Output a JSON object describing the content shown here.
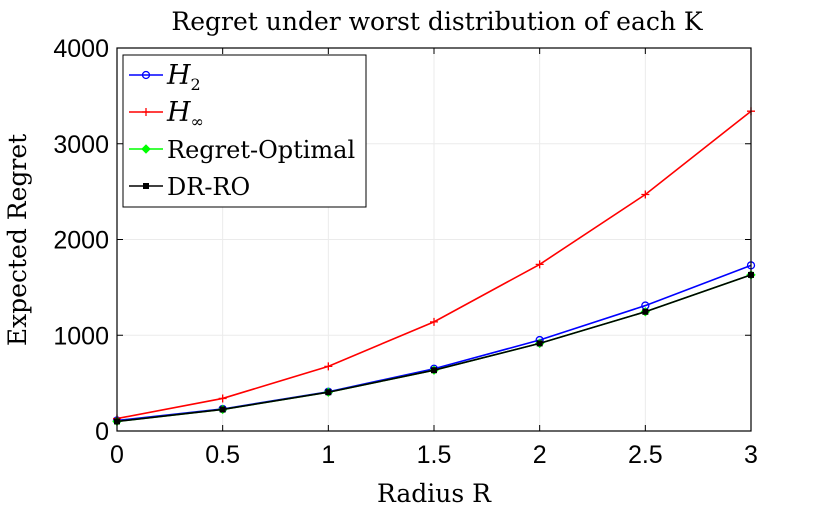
{
  "chart_data": {
    "type": "line",
    "title": "Regret under worst distribution of each K",
    "xlabel": "Radius R",
    "ylabel": "Expected Regret",
    "xlim": [
      0,
      3
    ],
    "ylim": [
      0,
      4000
    ],
    "xticks": [
      0,
      0.5,
      1,
      1.5,
      2,
      2.5,
      3
    ],
    "xtick_labels": [
      "0",
      "0.5",
      "1",
      "1.5",
      "2",
      "2.5",
      "3"
    ],
    "yticks": [
      0,
      1000,
      2000,
      3000,
      4000
    ],
    "ytick_labels": [
      "0",
      "1000",
      "2000",
      "3000",
      "4000"
    ],
    "grid": true,
    "legend_position": "top-left",
    "x": [
      0,
      0.5,
      1,
      1.5,
      2,
      2.5,
      3
    ],
    "series": [
      {
        "name": "H₂",
        "legend_main": "H",
        "legend_sub": "2",
        "color": "#0000ff",
        "marker": "circle",
        "values": [
          110,
          230,
          410,
          650,
          950,
          1310,
          1730
        ]
      },
      {
        "name": "H∞",
        "legend_main": "H",
        "legend_sub": "∞",
        "color": "#ff0000",
        "marker": "plus",
        "values": [
          130,
          340,
          675,
          1140,
          1740,
          2470,
          3340
        ]
      },
      {
        "name": "Regret-Optimal",
        "legend_main": "Regret-Optimal",
        "legend_sub": "",
        "color": "#00ff00",
        "marker": "diamond",
        "values": [
          100,
          225,
          405,
          635,
          915,
          1245,
          1630
        ]
      },
      {
        "name": "DR-RO",
        "legend_main": "DR-RO",
        "legend_sub": "",
        "color": "#000000",
        "marker": "square",
        "values": [
          100,
          225,
          405,
          635,
          915,
          1245,
          1630
        ]
      }
    ]
  }
}
